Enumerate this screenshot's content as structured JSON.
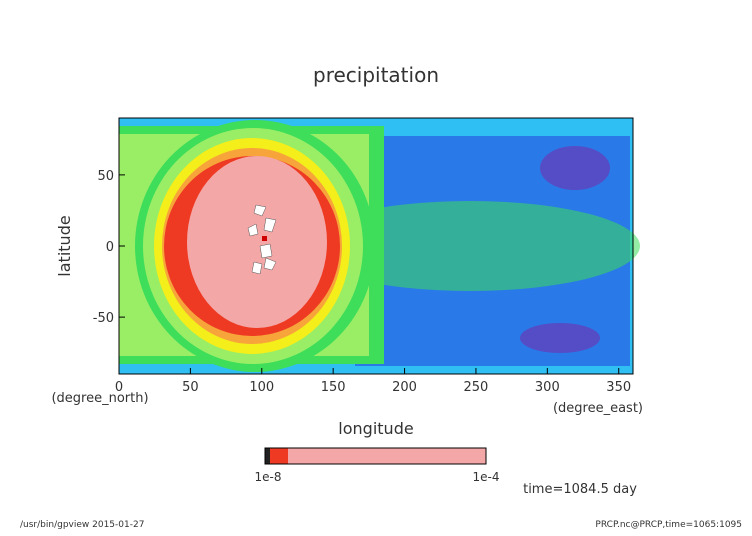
{
  "chart_data": {
    "type": "heatmap",
    "title": "precipitation",
    "xlabel": "longitude",
    "ylabel": "latitude",
    "x_unit": "(degree_east)",
    "y_unit": "(degree_north)",
    "xlim": [
      0,
      360
    ],
    "ylim": [
      -90,
      90
    ],
    "x_ticks": [
      0,
      50,
      100,
      150,
      200,
      250,
      300,
      350
    ],
    "y_ticks": [
      50,
      0,
      -50
    ],
    "colorbar": {
      "label_left": "1e-8",
      "label_right": "1e-4",
      "levels": [
        1e-08,
        2e-08,
        5e-08,
        1e-07,
        2e-07,
        5e-07,
        1e-06,
        2e-06,
        5e-06,
        1e-05,
        2e-05,
        0.0001
      ]
    },
    "annotation": "time=1084.5 day",
    "colors": {
      "pink": "#f4a7a7",
      "red": "#ee3a22",
      "orange": "#f7a53a",
      "yellow": "#f4ee1a",
      "light_green": "#99ee66",
      "green": "#3edd5a",
      "cyan": "#2ee0c8",
      "light_blue": "#2fbff2",
      "blue": "#2440e2",
      "purple": "#7a2aa8"
    }
  },
  "footer": {
    "left": "/usr/bin/gpview  2015-01-27",
    "right": "PRCP.nc@PRCP,time=1065:1095"
  }
}
